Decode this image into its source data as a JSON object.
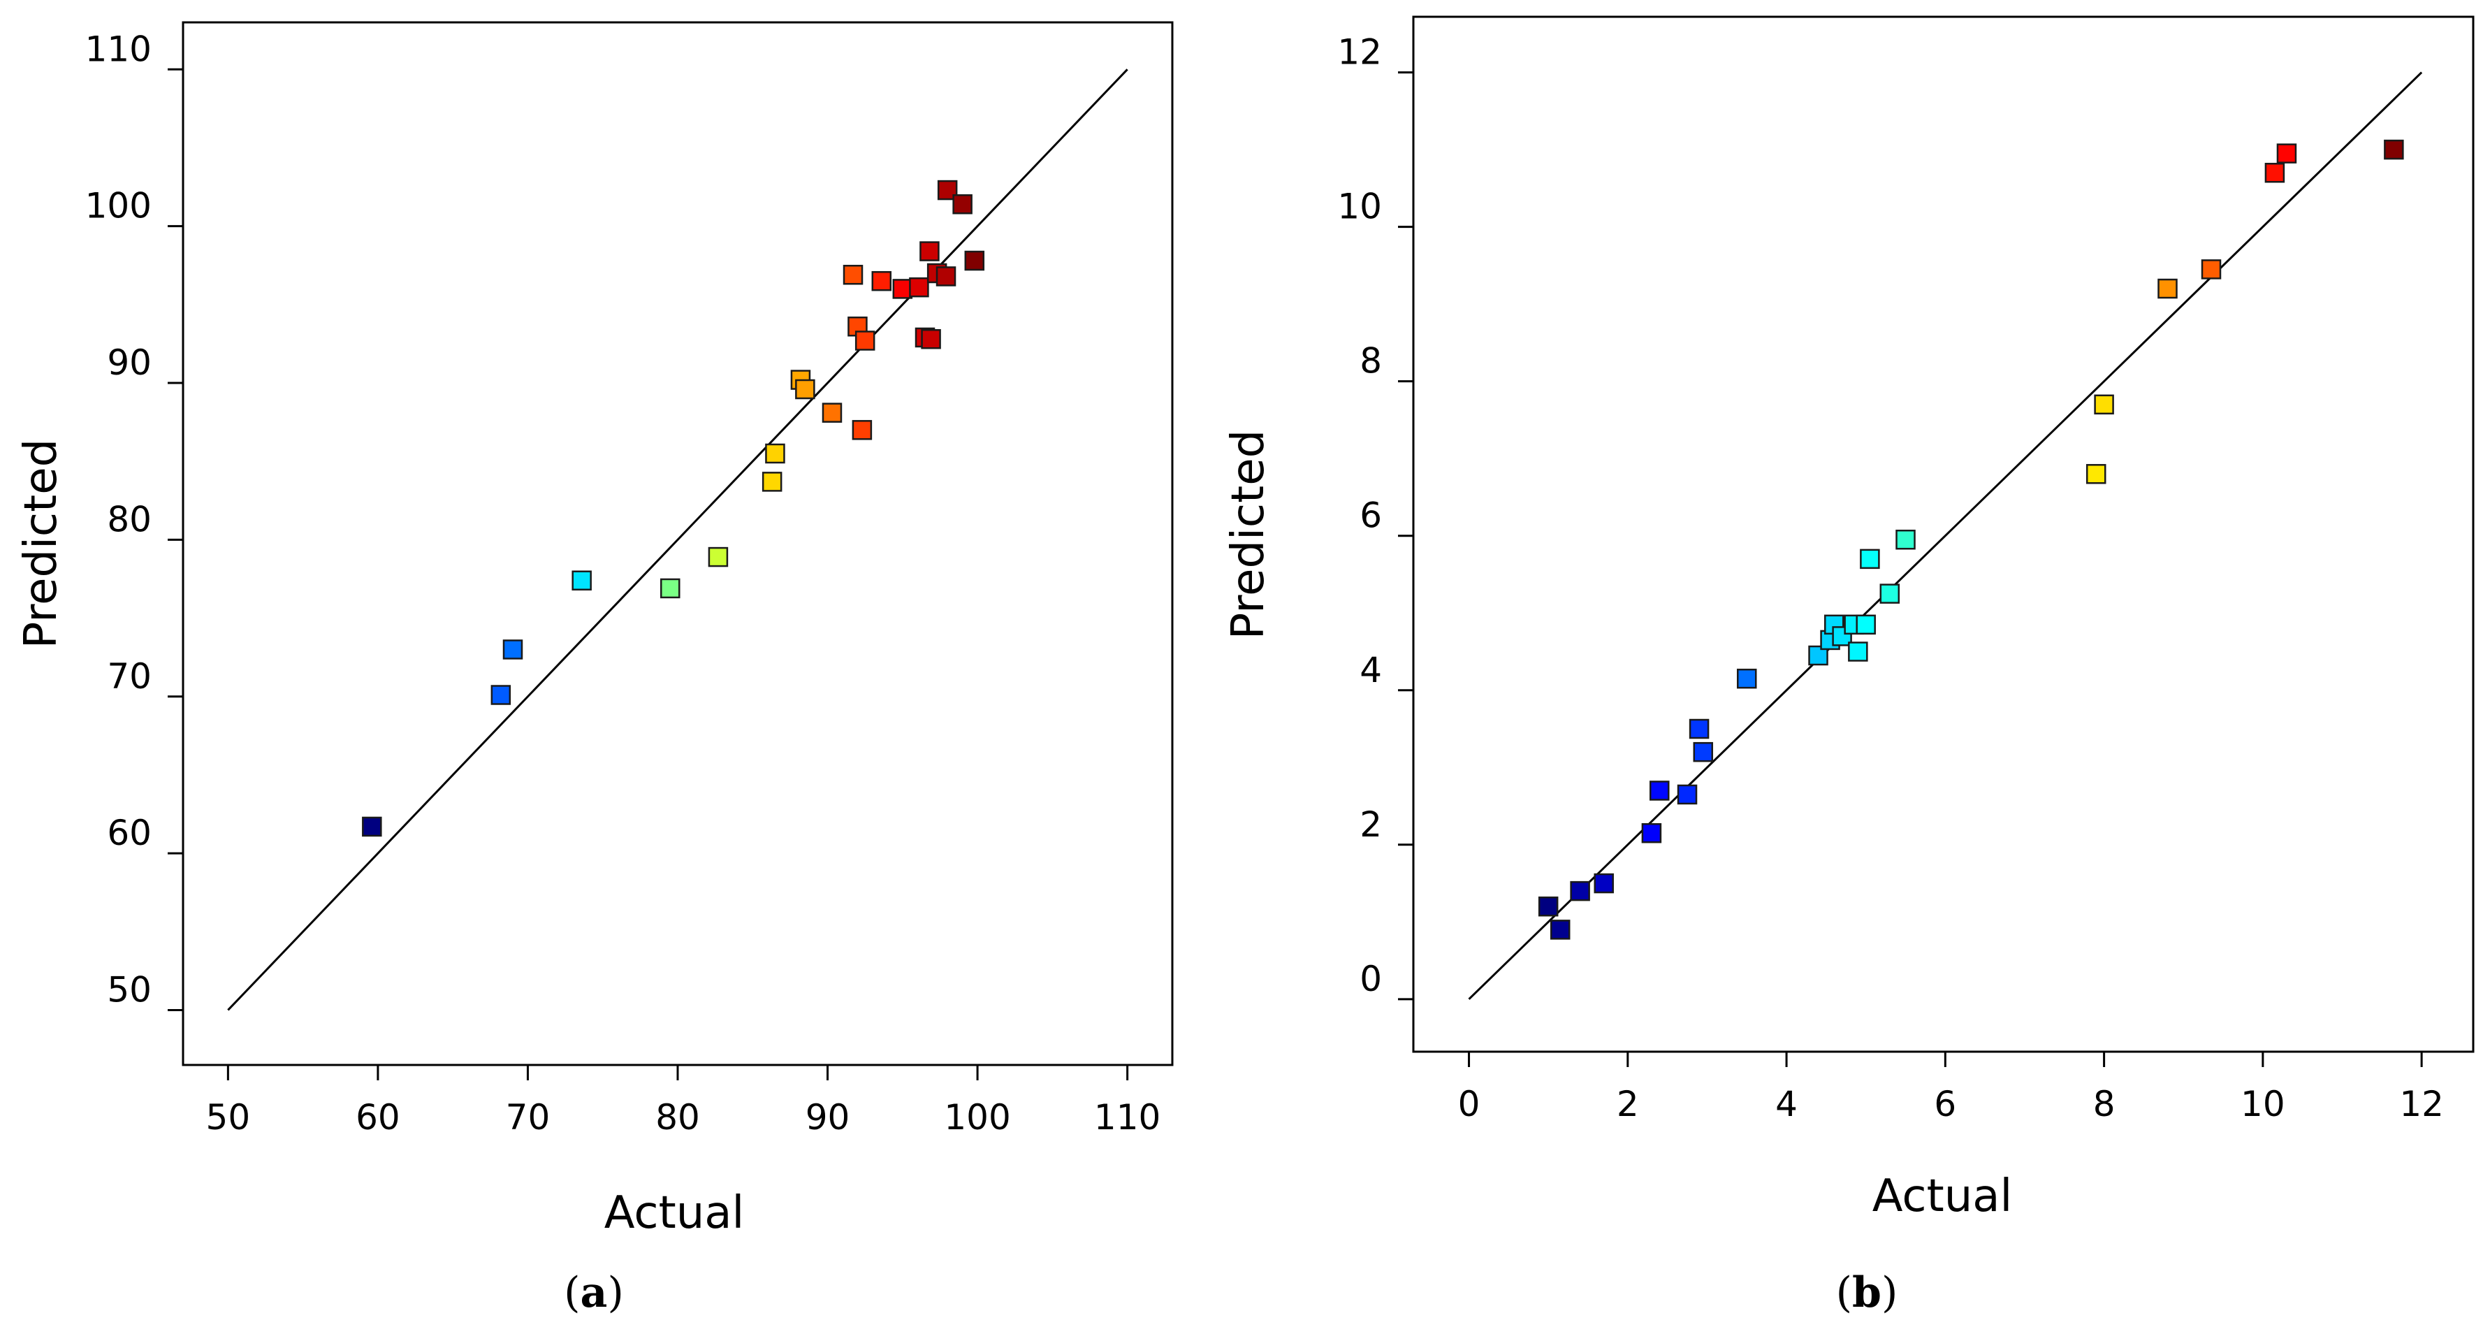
{
  "chart_data": [
    {
      "type": "scatter",
      "panel_label": "a",
      "xlabel": "Actual",
      "ylabel": "Predicted",
      "xlim": [
        47,
        113
      ],
      "ylim": [
        46.5,
        113
      ],
      "xticks": [
        50,
        60,
        70,
        80,
        90,
        100,
        110
      ],
      "yticks": [
        50,
        60,
        70,
        80,
        90,
        100,
        110
      ],
      "reference_line": {
        "from": [
          50,
          50
        ],
        "to": [
          110,
          110
        ]
      },
      "color_range": [
        59.6,
        99.8
      ],
      "points": [
        {
          "x": 59.6,
          "y": 61.7
        },
        {
          "x": 68.2,
          "y": 70.1
        },
        {
          "x": 69.0,
          "y": 73.0
        },
        {
          "x": 73.6,
          "y": 77.4
        },
        {
          "x": 79.5,
          "y": 76.9
        },
        {
          "x": 82.7,
          "y": 78.9
        },
        {
          "x": 86.3,
          "y": 83.7
        },
        {
          "x": 86.5,
          "y": 85.5
        },
        {
          "x": 88.2,
          "y": 90.2
        },
        {
          "x": 88.5,
          "y": 89.6
        },
        {
          "x": 90.3,
          "y": 88.1
        },
        {
          "x": 91.7,
          "y": 96.9
        },
        {
          "x": 92.0,
          "y": 93.6
        },
        {
          "x": 92.3,
          "y": 87.0
        },
        {
          "x": 92.5,
          "y": 92.7
        },
        {
          "x": 93.6,
          "y": 96.5
        },
        {
          "x": 95.0,
          "y": 96.0
        },
        {
          "x": 96.1,
          "y": 96.1
        },
        {
          "x": 96.5,
          "y": 92.9
        },
        {
          "x": 96.8,
          "y": 98.4
        },
        {
          "x": 96.9,
          "y": 92.8
        },
        {
          "x": 97.3,
          "y": 97.0
        },
        {
          "x": 97.9,
          "y": 96.8
        },
        {
          "x": 98.0,
          "y": 102.3
        },
        {
          "x": 99.0,
          "y": 101.4
        },
        {
          "x": 99.8,
          "y": 97.8
        }
      ]
    },
    {
      "type": "scatter",
      "panel_label": "b",
      "xlabel": "Actual",
      "ylabel": "Predicted",
      "xlim": [
        -0.7,
        12.65
      ],
      "ylim": [
        -0.68,
        12.72
      ],
      "xticks": [
        0,
        2,
        4,
        6,
        8,
        10,
        12
      ],
      "yticks": [
        0,
        2,
        4,
        6,
        8,
        10,
        12
      ],
      "reference_line": {
        "from": [
          0,
          0
        ],
        "to": [
          12,
          12
        ]
      },
      "color_range": [
        1.0,
        11.65
      ],
      "points": [
        {
          "x": 1.0,
          "y": 1.2
        },
        {
          "x": 1.15,
          "y": 0.9
        },
        {
          "x": 1.4,
          "y": 1.4
        },
        {
          "x": 1.7,
          "y": 1.5
        },
        {
          "x": 2.3,
          "y": 2.15
        },
        {
          "x": 2.4,
          "y": 2.7
        },
        {
          "x": 2.75,
          "y": 2.65
        },
        {
          "x": 2.9,
          "y": 3.5
        },
        {
          "x": 2.95,
          "y": 3.2
        },
        {
          "x": 3.5,
          "y": 4.15
        },
        {
          "x": 4.4,
          "y": 4.45
        },
        {
          "x": 4.55,
          "y": 4.65
        },
        {
          "x": 4.6,
          "y": 4.85
        },
        {
          "x": 4.7,
          "y": 4.7
        },
        {
          "x": 4.85,
          "y": 4.85
        },
        {
          "x": 4.9,
          "y": 4.5
        },
        {
          "x": 5.0,
          "y": 4.85
        },
        {
          "x": 5.05,
          "y": 5.7
        },
        {
          "x": 5.3,
          "y": 5.25
        },
        {
          "x": 5.5,
          "y": 5.95
        },
        {
          "x": 7.9,
          "y": 6.8
        },
        {
          "x": 8.0,
          "y": 7.7
        },
        {
          "x": 8.8,
          "y": 9.2
        },
        {
          "x": 9.35,
          "y": 9.45
        },
        {
          "x": 10.15,
          "y": 10.7
        },
        {
          "x": 10.3,
          "y": 10.95
        },
        {
          "x": 11.65,
          "y": 11.0
        }
      ]
    }
  ]
}
